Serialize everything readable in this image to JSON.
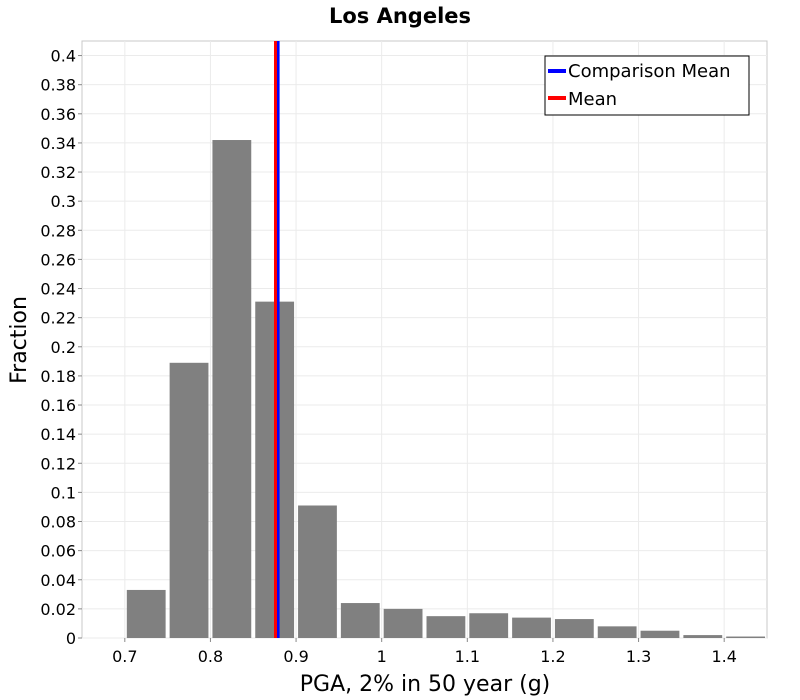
{
  "chart_data": {
    "type": "bar",
    "title": "Los Angeles",
    "xlabel": "PGA, 2% in 50 year (g)",
    "ylabel": "Fraction",
    "xlim": [
      0.65,
      1.45
    ],
    "ylim": [
      0,
      0.41
    ],
    "x_ticks": [
      "0.7",
      "0.8",
      "0.9",
      "1",
      "1.1",
      "1.2",
      "1.3",
      "1.4"
    ],
    "y_ticks": [
      "0",
      "0.02",
      "0.04",
      "0.06",
      "0.08",
      "0.1",
      "0.12",
      "0.14",
      "0.16",
      "0.18",
      "0.2",
      "0.22",
      "0.24",
      "0.26",
      "0.28",
      "0.3",
      "0.32",
      "0.34",
      "0.36",
      "0.38",
      "0.4"
    ],
    "grid": true,
    "bin_width": 0.05,
    "bins": [
      {
        "x": 0.725,
        "value": 0.033
      },
      {
        "x": 0.775,
        "value": 0.189
      },
      {
        "x": 0.825,
        "value": 0.342
      },
      {
        "x": 0.875,
        "value": 0.231
      },
      {
        "x": 0.925,
        "value": 0.091
      },
      {
        "x": 0.975,
        "value": 0.024
      },
      {
        "x": 1.025,
        "value": 0.02
      },
      {
        "x": 1.075,
        "value": 0.015
      },
      {
        "x": 1.125,
        "value": 0.017
      },
      {
        "x": 1.175,
        "value": 0.014
      },
      {
        "x": 1.225,
        "value": 0.013
      },
      {
        "x": 1.275,
        "value": 0.008
      },
      {
        "x": 1.325,
        "value": 0.005
      },
      {
        "x": 1.375,
        "value": 0.002
      },
      {
        "x": 1.425,
        "value": 0.001
      }
    ],
    "bar_color": "#808080",
    "vlines": [
      {
        "name": "Comparison Mean",
        "x": 0.879,
        "color": "#0000ff"
      },
      {
        "name": "Mean",
        "x": 0.876,
        "color": "#ff0000"
      }
    ],
    "legend": {
      "position": "top-right",
      "entries": [
        {
          "label": "Comparison Mean",
          "color": "#0000ff"
        },
        {
          "label": "Mean",
          "color": "#ff0000"
        }
      ]
    }
  }
}
